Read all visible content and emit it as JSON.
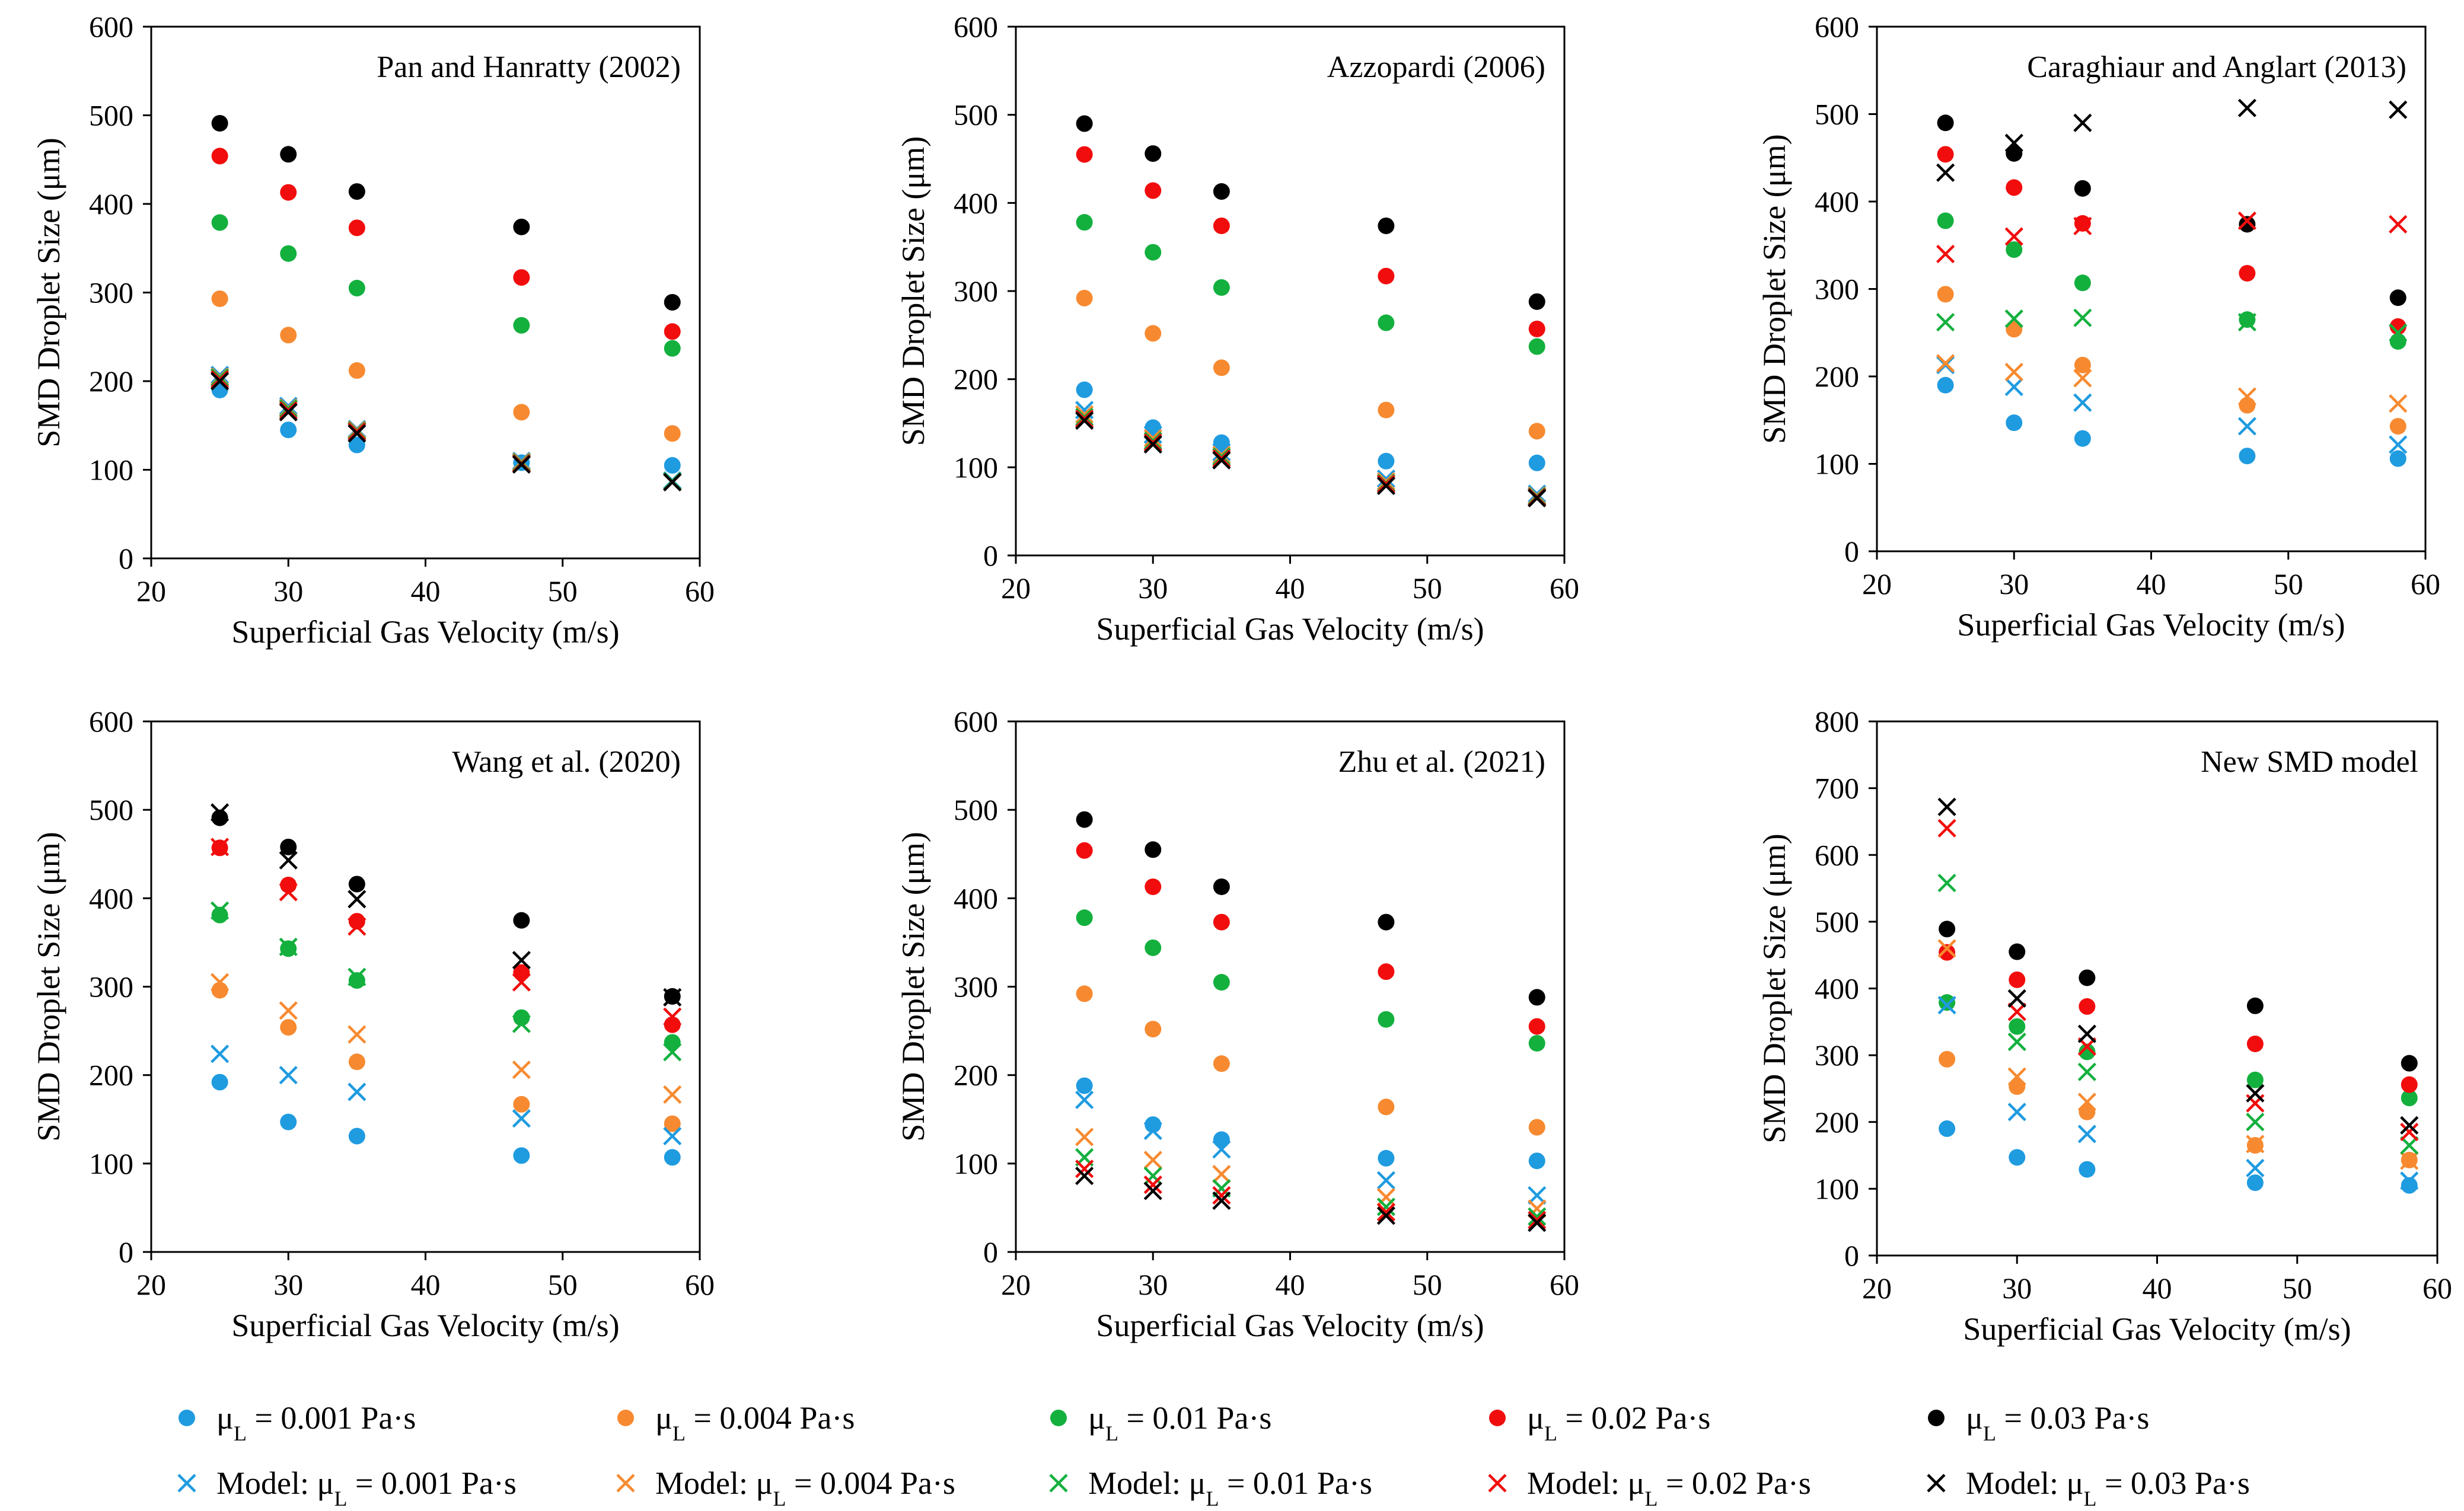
{
  "series_styles": [
    {
      "key": "d001",
      "color": "#1f9be0",
      "marker": "circle"
    },
    {
      "key": "d004",
      "color": "#f78a30",
      "marker": "circle"
    },
    {
      "key": "d01",
      "color": "#13b03e",
      "marker": "circle"
    },
    {
      "key": "d02",
      "color": "#f10d0d",
      "marker": "circle"
    },
    {
      "key": "d03",
      "color": "#000000",
      "marker": "circle"
    },
    {
      "key": "m001",
      "color": "#1f9be0",
      "marker": "x"
    },
    {
      "key": "m004",
      "color": "#f78a30",
      "marker": "x"
    },
    {
      "key": "m01",
      "color": "#13b03e",
      "marker": "x"
    },
    {
      "key": "m02",
      "color": "#f10d0d",
      "marker": "x"
    },
    {
      "key": "m03",
      "color": "#000000",
      "marker": "x"
    }
  ],
  "legend": [
    {
      "key": "d001",
      "prefix": "μ",
      "sub": "L",
      "suffix": " = 0.001 Pa·s"
    },
    {
      "key": "d004",
      "prefix": "μ",
      "sub": "L",
      "suffix": " = 0.004 Pa·s"
    },
    {
      "key": "d01",
      "prefix": "μ",
      "sub": "L",
      "suffix": " = 0.01 Pa·s"
    },
    {
      "key": "d02",
      "prefix": "μ",
      "sub": "L",
      "suffix": " = 0.02 Pa·s"
    },
    {
      "key": "d03",
      "prefix": "μ",
      "sub": "L",
      "suffix": " = 0.03 Pa·s"
    },
    {
      "key": "m001",
      "prefix": "Model: μ",
      "sub": "L",
      "suffix": " = 0.001 Pa·s"
    },
    {
      "key": "m004",
      "prefix": "Model: μ",
      "sub": "L",
      "suffix": " = 0.004 Pa·s"
    },
    {
      "key": "m01",
      "prefix": "Model: μ",
      "sub": "L",
      "suffix": " = 0.01 Pa·s"
    },
    {
      "key": "m02",
      "prefix": "Model: μ",
      "sub": "L",
      "suffix": " = 0.02 Pa·s"
    },
    {
      "key": "m03",
      "prefix": "Model: μ",
      "sub": "L",
      "suffix": " = 0.03 Pa·s"
    }
  ],
  "chart_data": [
    {
      "type": "scatter",
      "title": "Pan and Hanratty (2002)",
      "xlabel": "Superficial Gas Velocity (m/s)",
      "ylabel": "SMD Droplet Size (μm)",
      "xlim": [
        20,
        60
      ],
      "ylim": [
        0,
        600
      ],
      "xticks": [
        20,
        30,
        40,
        50,
        60
      ],
      "yticks": [
        0,
        100,
        200,
        300,
        400,
        500,
        600
      ],
      "x": [
        25,
        30,
        35,
        47,
        58
      ],
      "series": [
        {
          "key": "d001",
          "values": [
            190,
            145,
            128,
            108,
            105
          ]
        },
        {
          "key": "d004",
          "values": [
            293,
            252,
            212,
            165,
            141
          ]
        },
        {
          "key": "d01",
          "values": [
            379,
            344,
            305,
            263,
            237
          ]
        },
        {
          "key": "d02",
          "values": [
            454,
            413,
            373,
            317,
            256
          ]
        },
        {
          "key": "d03",
          "values": [
            491,
            456,
            414,
            374,
            289
          ]
        },
        {
          "key": "m001",
          "values": [
            207,
            172,
            146,
            110,
            88
          ]
        },
        {
          "key": "m004",
          "values": [
            205,
            170,
            145,
            109,
            87
          ]
        },
        {
          "key": "m01",
          "values": [
            204,
            169,
            144,
            108,
            87
          ]
        },
        {
          "key": "m02",
          "values": [
            202,
            167,
            143,
            107,
            86
          ]
        },
        {
          "key": "m03",
          "values": [
            200,
            165,
            141,
            106,
            86
          ]
        }
      ]
    },
    {
      "type": "scatter",
      "title": "Azzopardi (2006)",
      "xlabel": "Superficial Gas Velocity (m/s)",
      "ylabel": "SMD Droplet Size (μm)",
      "xlim": [
        20,
        60
      ],
      "ylim": [
        0,
        600
      ],
      "xticks": [
        20,
        30,
        40,
        50,
        60
      ],
      "yticks": [
        0,
        100,
        200,
        300,
        400,
        500,
        600
      ],
      "x": [
        25,
        30,
        35,
        47,
        58
      ],
      "series": [
        {
          "key": "d001",
          "values": [
            188,
            145,
            128,
            107,
            105
          ]
        },
        {
          "key": "d004",
          "values": [
            292,
            252,
            213,
            165,
            141
          ]
        },
        {
          "key": "d01",
          "values": [
            378,
            344,
            304,
            264,
            237
          ]
        },
        {
          "key": "d02",
          "values": [
            455,
            414,
            374,
            317,
            257
          ]
        },
        {
          "key": "d03",
          "values": [
            490,
            456,
            413,
            374,
            288
          ]
        },
        {
          "key": "m001",
          "values": [
            165,
            137,
            117,
            87,
            70
          ]
        },
        {
          "key": "m004",
          "values": [
            160,
            133,
            114,
            84,
            68
          ]
        },
        {
          "key": "m01",
          "values": [
            157,
            130,
            112,
            82,
            67
          ]
        },
        {
          "key": "m02",
          "values": [
            155,
            128,
            110,
            81,
            66
          ]
        },
        {
          "key": "m03",
          "values": [
            153,
            126,
            108,
            79,
            65
          ]
        }
      ]
    },
    {
      "type": "scatter",
      "title": "Caraghiaur and Anglart (2013)",
      "xlabel": "Superficial Gas Velocity (m/s)",
      "ylabel": "SMD Droplet Size (μm)",
      "xlim": [
        20,
        60
      ],
      "ylim": [
        0,
        600
      ],
      "xticks": [
        20,
        30,
        40,
        50,
        60
      ],
      "yticks": [
        0,
        100,
        200,
        300,
        400,
        500,
        600
      ],
      "x": [
        25,
        30,
        35,
        47,
        58
      ],
      "series": [
        {
          "key": "d001",
          "values": [
            190,
            147,
            129,
            109,
            106
          ]
        },
        {
          "key": "d004",
          "values": [
            294,
            254,
            213,
            167,
            143
          ]
        },
        {
          "key": "d01",
          "values": [
            378,
            345,
            307,
            265,
            240
          ]
        },
        {
          "key": "d02",
          "values": [
            454,
            416,
            375,
            318,
            257
          ]
        },
        {
          "key": "d03",
          "values": [
            490,
            455,
            415,
            374,
            290
          ]
        },
        {
          "key": "m001",
          "values": [
            213,
            188,
            170,
            143,
            122
          ]
        },
        {
          "key": "m004",
          "values": [
            215,
            205,
            198,
            177,
            169
          ]
        },
        {
          "key": "m01",
          "values": [
            262,
            266,
            267,
            262,
            250
          ]
        },
        {
          "key": "m02",
          "values": [
            340,
            360,
            372,
            378,
            374
          ]
        },
        {
          "key": "m03",
          "values": [
            433,
            467,
            490,
            507,
            505
          ]
        }
      ]
    },
    {
      "type": "scatter",
      "title": "Wang et al. (2020)",
      "xlabel": "Superficial Gas Velocity (m/s)",
      "ylabel": "SMD Droplet Size (μm)",
      "xlim": [
        20,
        60
      ],
      "ylim": [
        0,
        600
      ],
      "xticks": [
        20,
        30,
        40,
        50,
        60
      ],
      "yticks": [
        0,
        100,
        200,
        300,
        400,
        500,
        600
      ],
      "x": [
        25,
        30,
        35,
        47,
        58
      ],
      "series": [
        {
          "key": "d001",
          "values": [
            192,
            147,
            131,
            109,
            107
          ]
        },
        {
          "key": "d004",
          "values": [
            296,
            254,
            215,
            167,
            145
          ]
        },
        {
          "key": "d01",
          "values": [
            381,
            343,
            307,
            265,
            237
          ]
        },
        {
          "key": "d02",
          "values": [
            457,
            415,
            374,
            316,
            257
          ]
        },
        {
          "key": "d03",
          "values": [
            491,
            458,
            416,
            375,
            289
          ]
        },
        {
          "key": "m001",
          "values": [
            224,
            200,
            181,
            151,
            131
          ]
        },
        {
          "key": "m004",
          "values": [
            305,
            273,
            246,
            206,
            178
          ]
        },
        {
          "key": "m01",
          "values": [
            386,
            345,
            311,
            258,
            226
          ]
        },
        {
          "key": "m02",
          "values": [
            458,
            407,
            368,
            305,
            266
          ]
        },
        {
          "key": "m03",
          "values": [
            497,
            443,
            399,
            330,
            288
          ]
        }
      ]
    },
    {
      "type": "scatter",
      "title": "Zhu et al. (2021)",
      "xlabel": "Superficial Gas Velocity (m/s)",
      "ylabel": "SMD Droplet Size (μm)",
      "xlim": [
        20,
        60
      ],
      "ylim": [
        0,
        600
      ],
      "xticks": [
        20,
        30,
        40,
        50,
        60
      ],
      "yticks": [
        0,
        100,
        200,
        300,
        400,
        500,
        600
      ],
      "x": [
        25,
        30,
        35,
        47,
        58
      ],
      "series": [
        {
          "key": "d001",
          "values": [
            188,
            144,
            127,
            106,
            103
          ]
        },
        {
          "key": "d004",
          "values": [
            292,
            252,
            213,
            164,
            141
          ]
        },
        {
          "key": "d01",
          "values": [
            378,
            344,
            305,
            263,
            236
          ]
        },
        {
          "key": "d02",
          "values": [
            454,
            413,
            373,
            317,
            255
          ]
        },
        {
          "key": "d03",
          "values": [
            489,
            455,
            413,
            373,
            288
          ]
        },
        {
          "key": "m001",
          "values": [
            172,
            137,
            116,
            81,
            64
          ]
        },
        {
          "key": "m004",
          "values": [
            130,
            104,
            88,
            62,
            49
          ]
        },
        {
          "key": "m01",
          "values": [
            107,
            86,
            72,
            51,
            40
          ]
        },
        {
          "key": "m02",
          "values": [
            94,
            76,
            64,
            45,
            36
          ]
        },
        {
          "key": "m03",
          "values": [
            86,
            69,
            58,
            41,
            33
          ]
        }
      ]
    },
    {
      "type": "scatter",
      "title": "New SMD model",
      "xlabel": "Superficial Gas Velocity (m/s)",
      "ylabel": "SMD Droplet Size (μm)",
      "xlim": [
        20,
        60
      ],
      "ylim": [
        0,
        800
      ],
      "xticks": [
        20,
        30,
        40,
        50,
        60
      ],
      "yticks": [
        0,
        100,
        200,
        300,
        400,
        500,
        600,
        700,
        800
      ],
      "x": [
        25,
        30,
        35,
        47,
        58
      ],
      "series": [
        {
          "key": "d001",
          "values": [
            190,
            147,
            129,
            109,
            105
          ]
        },
        {
          "key": "d004",
          "values": [
            294,
            253,
            215,
            165,
            143
          ]
        },
        {
          "key": "d01",
          "values": [
            379,
            343,
            305,
            263,
            236
          ]
        },
        {
          "key": "d02",
          "values": [
            454,
            413,
            373,
            317,
            256
          ]
        },
        {
          "key": "d03",
          "values": [
            489,
            455,
            416,
            374,
            288
          ]
        },
        {
          "key": "m001",
          "values": [
            375,
            215,
            182,
            131,
            112
          ]
        },
        {
          "key": "m004",
          "values": [
            460,
            268,
            230,
            167,
            142
          ]
        },
        {
          "key": "m01",
          "values": [
            558,
            320,
            275,
            200,
            165
          ]
        },
        {
          "key": "m02",
          "values": [
            640,
            365,
            313,
            228,
            185
          ]
        },
        {
          "key": "m03",
          "values": [
            672,
            385,
            332,
            243,
            195
          ]
        }
      ]
    }
  ]
}
